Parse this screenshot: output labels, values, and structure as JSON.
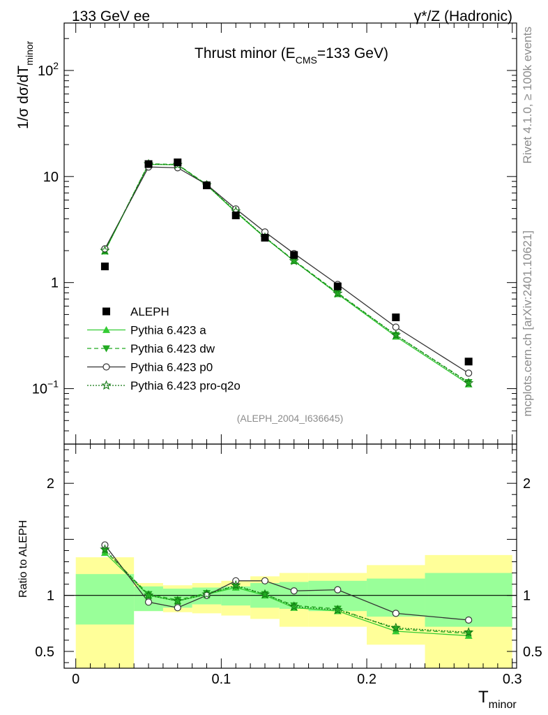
{
  "header": {
    "left": "133 GeV ee",
    "right": "γ*/Z (Hadronic)"
  },
  "side_text": {
    "rivet": "Rivet 4.1.0, ≥ 100k events",
    "mcplots": "mcplots.cern.ch [arXiv:2401.10621]"
  },
  "chart_data": {
    "type": "line",
    "title": "Thrust minor (E_CMS=133 GeV)",
    "title_parts": {
      "main": "Thrust minor (E",
      "sub": "CMS",
      "tail": "=133 GeV)"
    },
    "analysis_id": "(ALEPH_2004_I636645)",
    "xlabel": {
      "main": "T",
      "sub": "minor"
    },
    "ylabel": {
      "main": "1/σ  dσ/dT",
      "sub": "minor"
    },
    "ratio_ylabel": "Ratio to ALEPH",
    "xlim": [
      -0.008,
      0.303
    ],
    "ylim_main": [
      0.03,
      280
    ],
    "ylim_ratio": [
      0.35,
      2.35
    ],
    "x_ticks": [
      0,
      0.1,
      0.2,
      0.3
    ],
    "x_tick_labels": [
      "0",
      "0.1",
      "0.2",
      "0.3"
    ],
    "y_ticks_main": [
      {
        "value": 0.1,
        "label": "10",
        "exp": "−1"
      },
      {
        "value": 1,
        "label": "1",
        "exp": ""
      },
      {
        "value": 10,
        "label": "10",
        "exp": ""
      },
      {
        "value": 100,
        "label": "10",
        "exp": "2"
      }
    ],
    "y_ticks_ratio": [
      {
        "value": 0.5,
        "label": "0.5"
      },
      {
        "value": 1,
        "label": "1"
      },
      {
        "value": 2,
        "label": "2"
      }
    ],
    "bin_edges": [
      0,
      0.04,
      0.06,
      0.08,
      0.1,
      0.12,
      0.14,
      0.16,
      0.2,
      0.24,
      0.3
    ],
    "x": [
      0.02,
      0.05,
      0.07,
      0.09,
      0.11,
      0.13,
      0.15,
      0.18,
      0.22,
      0.27
    ],
    "data": {
      "name": "ALEPH",
      "values": [
        1.42,
        13.1,
        13.6,
        8.25,
        4.3,
        2.65,
        1.82,
        0.92,
        0.47,
        0.18
      ],
      "band_inner": [
        [
          0.74,
          1.19
        ],
        [
          0.86,
          1.08
        ],
        [
          0.89,
          1.06
        ],
        [
          0.92,
          1.07
        ],
        [
          0.91,
          1.08
        ],
        [
          0.89,
          1.11
        ],
        [
          0.88,
          1.12
        ],
        [
          0.86,
          1.13
        ],
        [
          0.81,
          1.15
        ],
        [
          0.72,
          1.2
        ]
      ],
      "band_outer": [
        [
          0.35,
          1.34
        ],
        [
          0.86,
          1.11
        ],
        [
          0.85,
          1.09
        ],
        [
          0.84,
          1.11
        ],
        [
          0.82,
          1.13
        ],
        [
          0.79,
          1.17
        ],
        [
          0.72,
          1.2
        ],
        [
          0.72,
          1.2
        ],
        [
          0.56,
          1.27
        ],
        [
          0.35,
          1.36
        ]
      ]
    },
    "series": [
      {
        "name": "Pythia 6.423 a",
        "marker": "triangle-up",
        "dash": "solid",
        "color": "#33cc33",
        "values": [
          1.97,
          13.0,
          12.9,
          8.3,
          4.6,
          2.65,
          1.6,
          0.78,
          0.31,
          0.11
        ],
        "ratio": [
          1.38,
          1.0,
          0.95,
          1.01,
          1.07,
          1.0,
          0.89,
          0.86,
          0.68,
          0.64
        ]
      },
      {
        "name": "Pythia 6.423 dw",
        "marker": "triangle-down",
        "dash": "dashed",
        "color": "#22aa22",
        "values": [
          1.99,
          13.2,
          13.0,
          8.4,
          4.65,
          2.68,
          1.62,
          0.8,
          0.32,
          0.115
        ],
        "ratio": [
          1.4,
          1.01,
          0.96,
          1.02,
          1.08,
          1.01,
          0.91,
          0.88,
          0.7,
          0.66
        ]
      },
      {
        "name": "Pythia 6.423 p0",
        "marker": "circle-open",
        "dash": "solid",
        "color": "#333333",
        "values": [
          2.08,
          12.3,
          12.1,
          8.4,
          4.95,
          3.0,
          1.88,
          0.96,
          0.38,
          0.14
        ],
        "ratio": [
          1.45,
          0.94,
          0.89,
          1.0,
          1.13,
          1.13,
          1.04,
          1.05,
          0.84,
          0.78
        ]
      },
      {
        "name": "Pythia 6.423 pro-q2o",
        "marker": "star",
        "dash": "dotted",
        "color": "#117711",
        "values": [
          2.0,
          13.1,
          12.9,
          8.3,
          4.7,
          2.67,
          1.6,
          0.79,
          0.32,
          0.113
        ],
        "ratio": [
          1.41,
          1.0,
          0.95,
          1.01,
          1.09,
          1.01,
          0.9,
          0.87,
          0.71,
          0.67
        ]
      }
    ],
    "legend_position": "middle-left"
  }
}
